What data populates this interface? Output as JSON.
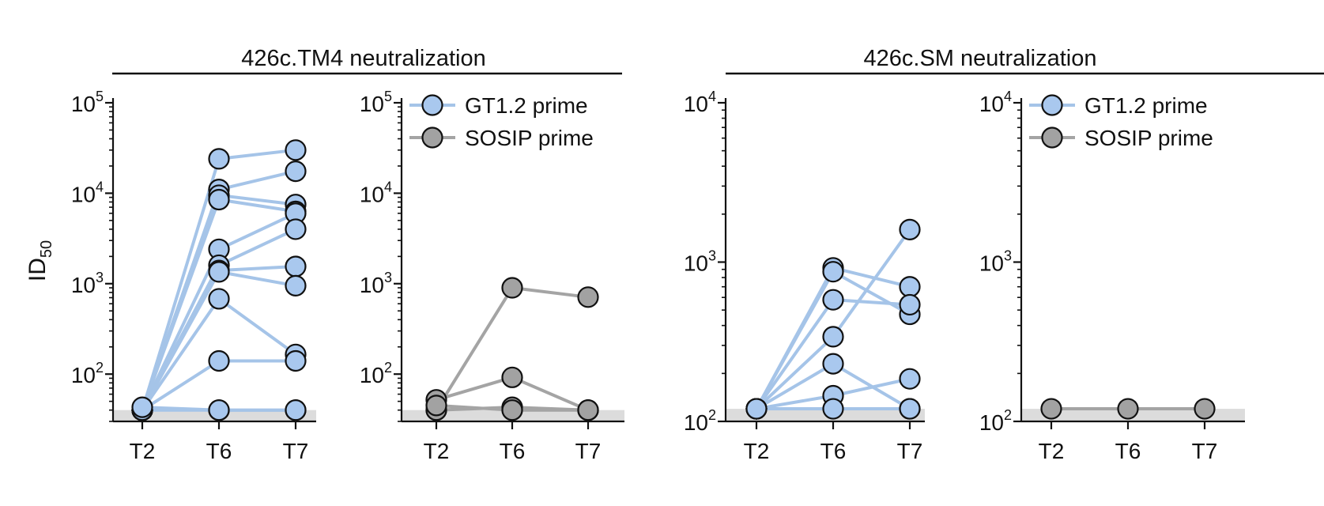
{
  "ylabel": "ID",
  "ylabel_sub": "50",
  "colors": {
    "gt": "#a5c4e8",
    "sosip": "#a4a4a4",
    "gt_marker": "#a9c8ee",
    "sosip_marker": "#a2a2a2",
    "baseline_band": "#dcdcdc"
  },
  "groups": [
    {
      "title": "426c.TM4 neutralization"
    },
    {
      "title": "426c.SM neutralization"
    }
  ],
  "chart_data": [
    {
      "type": "line",
      "group": "426c.TM4 neutralization",
      "yscale": "log",
      "ylim": [
        30,
        100000
      ],
      "yticks": [
        100,
        1000,
        10000,
        100000
      ],
      "ytick_base": "10",
      "ytick_exps": [
        "2",
        "3",
        "4",
        "5"
      ],
      "baseline": 40,
      "categories": [
        "T2",
        "T6",
        "T7"
      ],
      "color_key": "gt",
      "marker_key": "gt_marker",
      "series": [
        {
          "values": [
            40,
            24000,
            30000
          ]
        },
        {
          "values": [
            40,
            11000,
            17500
          ]
        },
        {
          "values": [
            40,
            9500,
            7500
          ]
        },
        {
          "values": [
            40,
            8500,
            6300
          ]
        },
        {
          "values": [
            40,
            2400,
            6000
          ]
        },
        {
          "values": [
            40,
            1600,
            4000
          ]
        },
        {
          "values": [
            40,
            1400,
            1550
          ]
        },
        {
          "values": [
            40,
            1350,
            950
          ]
        },
        {
          "values": [
            40,
            680,
            165
          ]
        },
        {
          "values": [
            40,
            140,
            140
          ]
        },
        {
          "values": [
            40,
            40,
            40
          ]
        },
        {
          "values": [
            43,
            40,
            40
          ]
        }
      ]
    },
    {
      "type": "line",
      "group": "426c.TM4 neutralization",
      "yscale": "log",
      "ylim": [
        30,
        100000
      ],
      "yticks": [
        100,
        1000,
        10000,
        100000
      ],
      "ytick_base": "10",
      "ytick_exps": [
        "2",
        "3",
        "4",
        "5"
      ],
      "baseline": 40,
      "categories": [
        "T2",
        "T6",
        "T7"
      ],
      "color_key": "sosip",
      "marker_key": "sosip_marker",
      "legend": {
        "placement": "top-right",
        "entries": [
          {
            "label": "GT1.2 prime",
            "color_key": "gt",
            "marker_key": "gt_marker"
          },
          {
            "label": "SOSIP prime",
            "color_key": "sosip",
            "marker_key": "sosip_marker"
          }
        ]
      },
      "series": [
        {
          "values": [
            40,
            900,
            710
          ]
        },
        {
          "values": [
            52,
            92,
            40
          ]
        },
        {
          "values": [
            40,
            43,
            40
          ]
        },
        {
          "values": [
            45,
            40,
            40
          ]
        }
      ]
    },
    {
      "type": "line",
      "group": "426c.SM neutralization",
      "yscale": "log",
      "ylim": [
        100,
        10000
      ],
      "yticks": [
        100,
        1000,
        10000
      ],
      "ytick_base": "10",
      "ytick_exps": [
        "2",
        "3",
        "4"
      ],
      "baseline": 120,
      "categories": [
        "T2",
        "T6",
        "T7"
      ],
      "color_key": "gt",
      "marker_key": "gt_marker",
      "series": [
        {
          "values": [
            120,
            920,
            700
          ]
        },
        {
          "values": [
            120,
            870,
            470
          ]
        },
        {
          "values": [
            120,
            580,
            540
          ]
        },
        {
          "values": [
            120,
            340,
            1600
          ]
        },
        {
          "values": [
            120,
            230,
            120
          ]
        },
        {
          "values": [
            120,
            145,
            185
          ]
        },
        {
          "values": [
            120,
            120,
            120
          ]
        }
      ]
    },
    {
      "type": "line",
      "group": "426c.SM neutralization",
      "yscale": "log",
      "ylim": [
        100,
        10000
      ],
      "yticks": [
        100,
        1000,
        10000
      ],
      "ytick_base": "10",
      "ytick_exps": [
        "2",
        "3",
        "4"
      ],
      "baseline": 120,
      "categories": [
        "T2",
        "T6",
        "T7"
      ],
      "color_key": "sosip",
      "marker_key": "sosip_marker",
      "legend": {
        "placement": "top-right",
        "entries": [
          {
            "label": "GT1.2 prime",
            "color_key": "gt",
            "marker_key": "gt_marker"
          },
          {
            "label": "SOSIP prime",
            "color_key": "sosip",
            "marker_key": "sosip_marker"
          }
        ]
      },
      "series": [
        {
          "values": [
            120,
            120,
            120
          ]
        }
      ]
    }
  ]
}
